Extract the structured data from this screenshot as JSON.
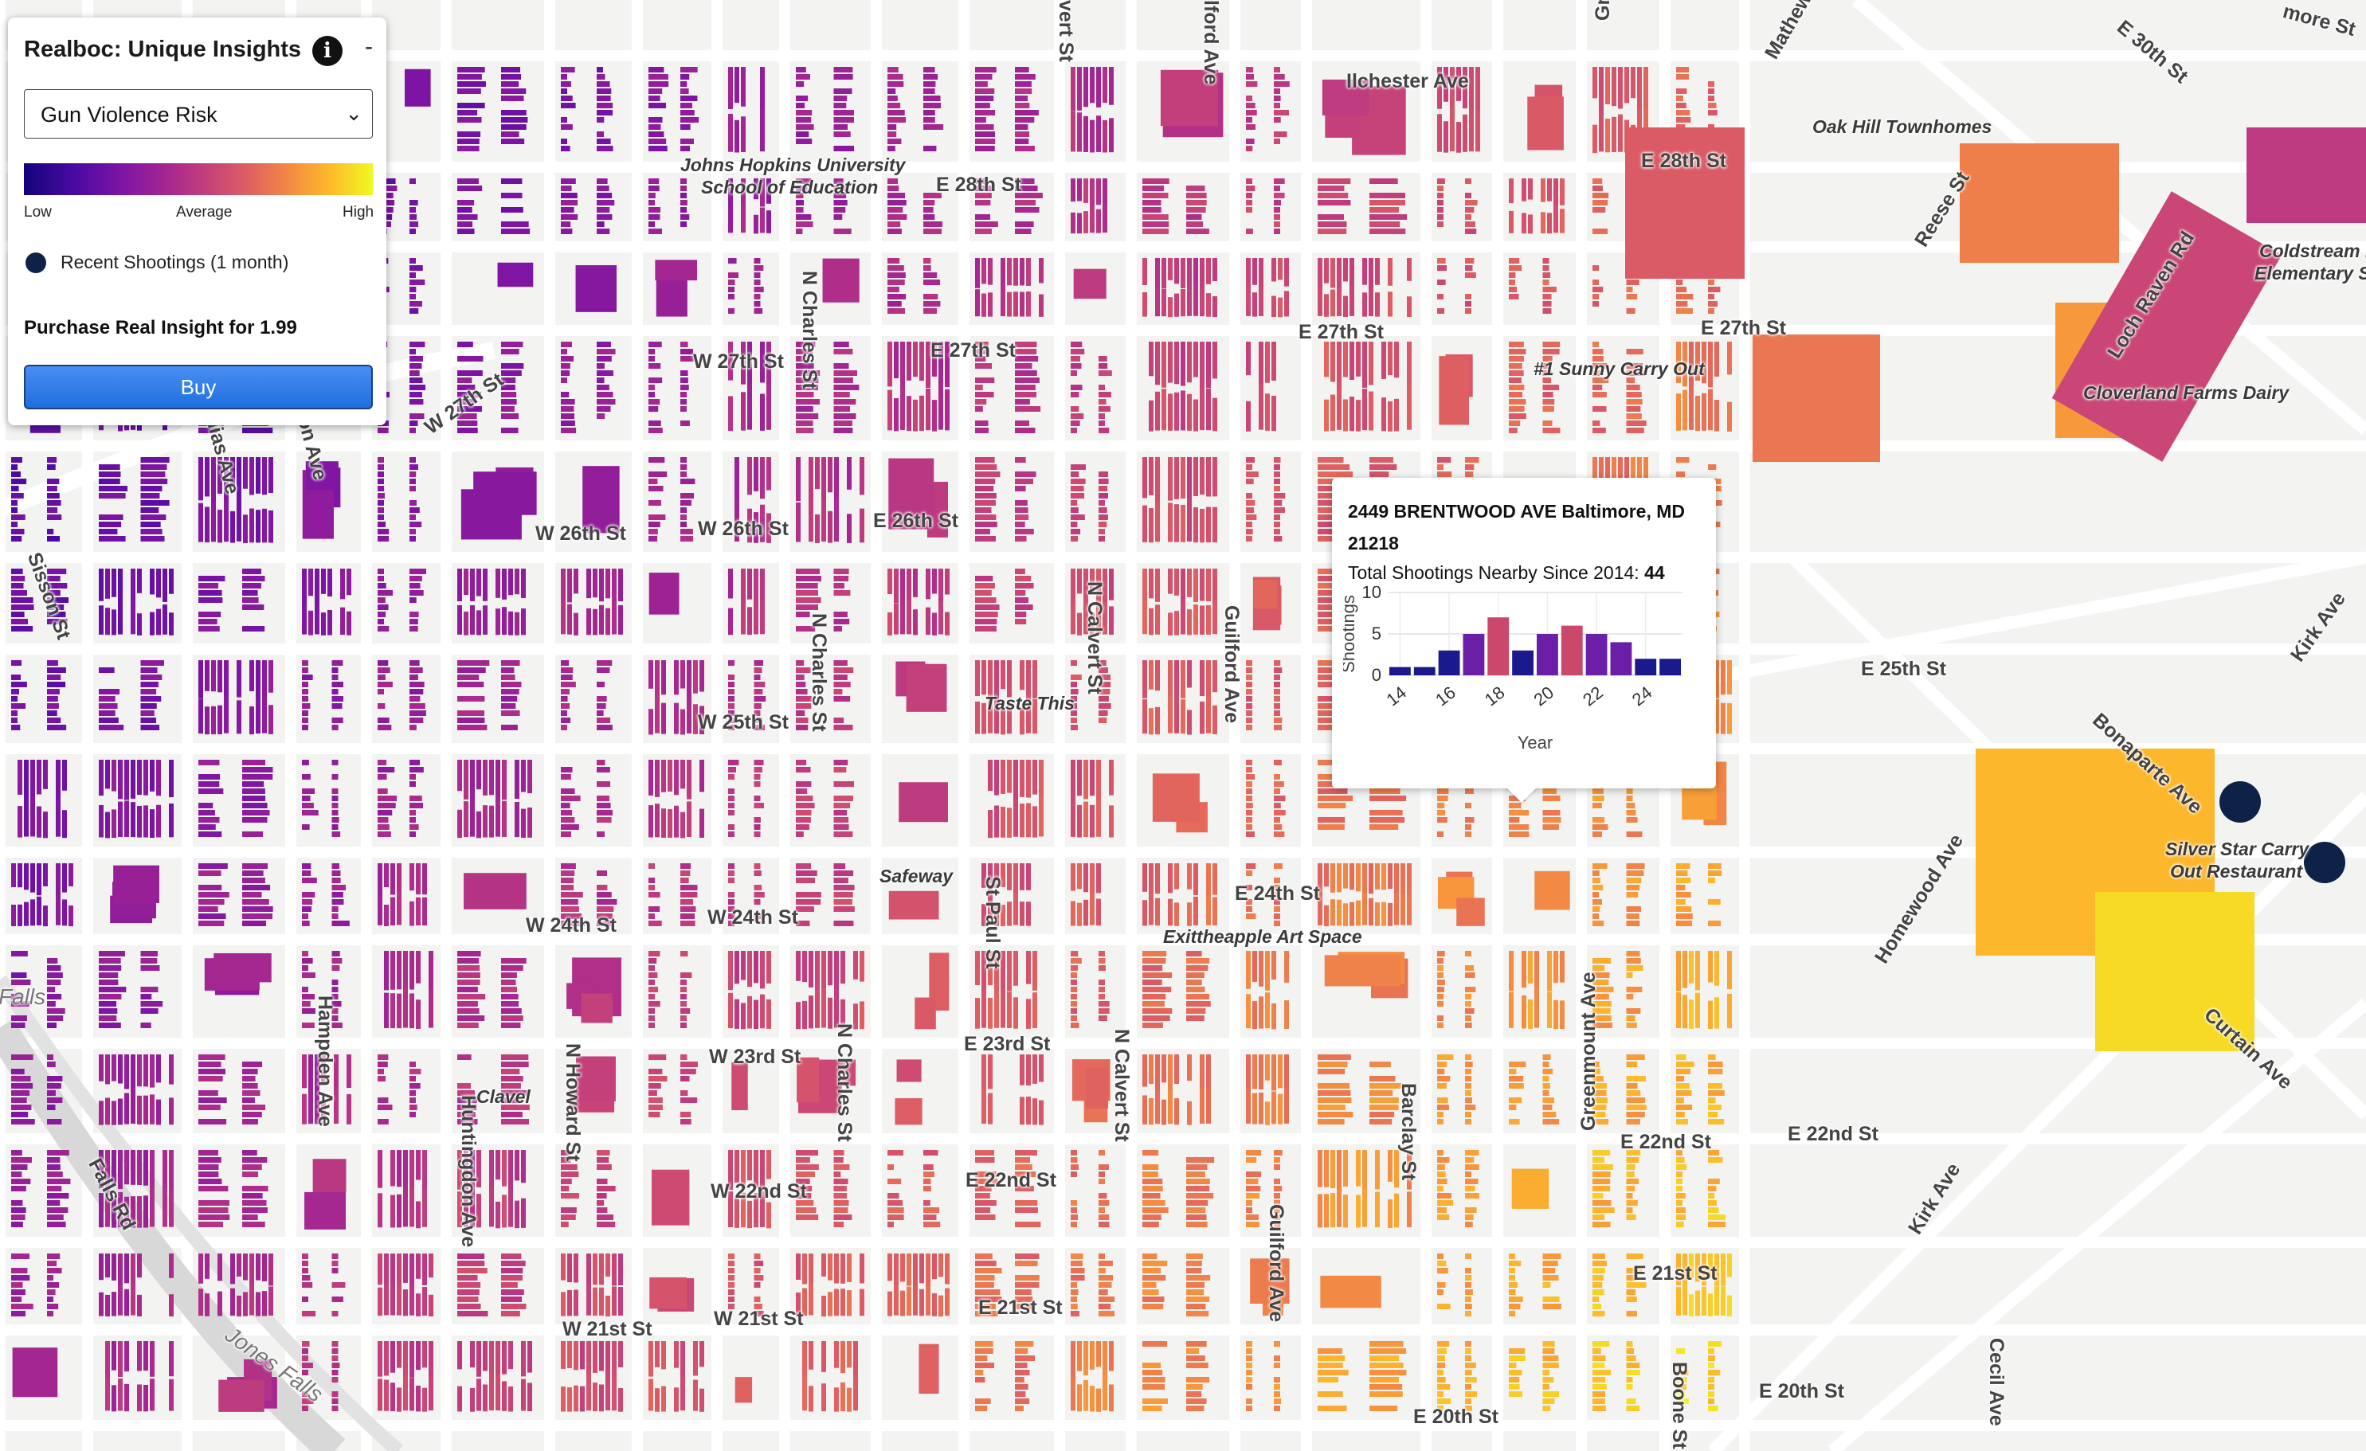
{
  "map": {
    "street_labels": [
      {
        "text": "Ilchester Ave",
        "rot": 0
      },
      {
        "text": "E 28th St",
        "rot": 0
      },
      {
        "text": "E 28th St",
        "rot": 0
      },
      {
        "text": "E 27th St",
        "rot": 0
      },
      {
        "text": "E 27th St",
        "rot": 0
      },
      {
        "text": "E 27th St",
        "rot": 0
      },
      {
        "text": "W 27th St",
        "rot": 0
      },
      {
        "text": "W 27th St",
        "rot": -35
      },
      {
        "text": "W 26th St",
        "rot": 0
      },
      {
        "text": "W 26th St",
        "rot": 0
      },
      {
        "text": "E 26th St",
        "rot": 0
      },
      {
        "text": "E 25th St",
        "rot": 0
      },
      {
        "text": "W 25th St",
        "rot": 0
      },
      {
        "text": "E 24th St",
        "rot": 0
      },
      {
        "text": "W 24th St",
        "rot": 0
      },
      {
        "text": "W 24th St",
        "rot": 0
      },
      {
        "text": "E 23rd St",
        "rot": 0
      },
      {
        "text": "W 23rd St",
        "rot": 0
      },
      {
        "text": "E 22nd St",
        "rot": 0
      },
      {
        "text": "E 22nd St",
        "rot": 0
      },
      {
        "text": "E 22nd St",
        "rot": 0
      },
      {
        "text": "W 22nd St",
        "rot": 0
      },
      {
        "text": "E 21st St",
        "rot": 0
      },
      {
        "text": "E 21st St",
        "rot": 0
      },
      {
        "text": "W 21st St",
        "rot": 0
      },
      {
        "text": "W 21st St",
        "rot": 0
      },
      {
        "text": "E 20th St",
        "rot": 0
      },
      {
        "text": "E 20th St",
        "rot": 0
      },
      {
        "text": "N Charles St",
        "rot": 90
      },
      {
        "text": "N Charles St",
        "rot": 90
      },
      {
        "text": "N Charles St",
        "rot": 90
      },
      {
        "text": "N Calvert St",
        "rot": 90
      },
      {
        "text": "N Calvert St",
        "rot": 90
      },
      {
        "text": "St Paul St",
        "rot": 90
      },
      {
        "text": "Guilford Ave",
        "rot": 90
      },
      {
        "text": "Guilford Ave",
        "rot": 90
      },
      {
        "text": "Greenmount Ave",
        "rot": -90
      },
      {
        "text": "Barclay St",
        "rot": 90
      },
      {
        "text": "Boone St",
        "rot": 90
      },
      {
        "text": "Cecil Ave",
        "rot": 90
      },
      {
        "text": "Kirk Ave",
        "rot": -55
      },
      {
        "text": "Kirk Ave",
        "rot": -58
      },
      {
        "text": "Homewood Ave",
        "rot": -58
      },
      {
        "text": "Bonaparte Ave",
        "rot": 42
      },
      {
        "text": "Curtain Ave",
        "rot": 42
      },
      {
        "text": "Loch Raven Rd",
        "rot": -58
      },
      {
        "text": "Reese St",
        "rot": -58
      },
      {
        "text": "E 30th St",
        "rot": 40
      },
      {
        "text": "Sisson St",
        "rot": 70
      },
      {
        "text": "N Howard St",
        "rot": 90
      },
      {
        "text": "Huntingdon Ave",
        "rot": 90
      },
      {
        "text": "Hampden Ave",
        "rot": 90
      },
      {
        "text": "Falls Rd",
        "rot": 62
      },
      {
        "text": "lford Ave",
        "rot": 90
      },
      {
        "text": "vert St",
        "rot": 90
      },
      {
        "text": "Gre",
        "rot": -90
      },
      {
        "text": "Mathew",
        "rot": -60
      },
      {
        "text": "more St",
        "rot": 15
      },
      {
        "text": "llias Ave",
        "rot": 75
      },
      {
        "text": "on Ave",
        "rot": 75
      }
    ],
    "poi_labels": [
      {
        "text": "Johns Hopkins University"
      },
      {
        "text": "School of Education"
      },
      {
        "text": "Oak Hill Townhomes"
      },
      {
        "text": "#1 Sunny Carry Out"
      },
      {
        "text": "Cloverland Farms Dairy"
      },
      {
        "text": "Coldstream P"
      },
      {
        "text": "Elementary Sc"
      },
      {
        "text": "Taste This"
      },
      {
        "text": "Safeway"
      },
      {
        "text": "Exittheapple Art Space"
      },
      {
        "text": "Silver Star Carry"
      },
      {
        "text": "Out Restaurant"
      },
      {
        "text": "Clavel"
      }
    ],
    "water_labels": [
      {
        "text": "Falls"
      },
      {
        "text": "Jones Falls"
      }
    ],
    "shooting_markers": 2,
    "marker_color": "#0e2247"
  },
  "panel": {
    "title": "Realboc: Unique Insights",
    "info_icon": "i",
    "collapse_label": "-",
    "layer_select": {
      "selected": "Gun Violence Risk",
      "chevron": "⌄"
    },
    "legend": {
      "low": "Low",
      "average": "Average",
      "high": "High",
      "colors": [
        "#13047a",
        "#7e14a4",
        "#ca4676",
        "#f6913f",
        "#f0f921"
      ]
    },
    "recent_shootings_label": "Recent Shootings (1 month)",
    "purchase_text": "Purchase Real Insight for 1.99",
    "buy_label": "Buy"
  },
  "popup": {
    "address": "2449 BRENTWOOD AVE Baltimore, MD 21218",
    "total_label": "Total Shootings Nearby Since 2014: ",
    "total_value": "44"
  },
  "chart_data": {
    "type": "bar",
    "x": [
      14,
      15,
      16,
      17,
      18,
      19,
      20,
      21,
      22,
      23,
      24,
      25
    ],
    "values": [
      1,
      1,
      3,
      5,
      7,
      3,
      5,
      6,
      5,
      4,
      2,
      2
    ],
    "colors": [
      "#1a1a8c",
      "#1a1a8c",
      "#1a1a8c",
      "#6b1fa6",
      "#c9486b",
      "#1a1a8c",
      "#6b1fa6",
      "#c9486b",
      "#6b1fa6",
      "#6b1fa6",
      "#1a1a8c",
      "#1a1a8c"
    ],
    "xticks": [
      "14",
      "16",
      "18",
      "20",
      "22",
      "24"
    ],
    "yticks": [
      "0",
      "5",
      "10"
    ],
    "ylim": [
      0,
      10
    ],
    "xlabel": "Year",
    "ylabel": "Shootings"
  }
}
